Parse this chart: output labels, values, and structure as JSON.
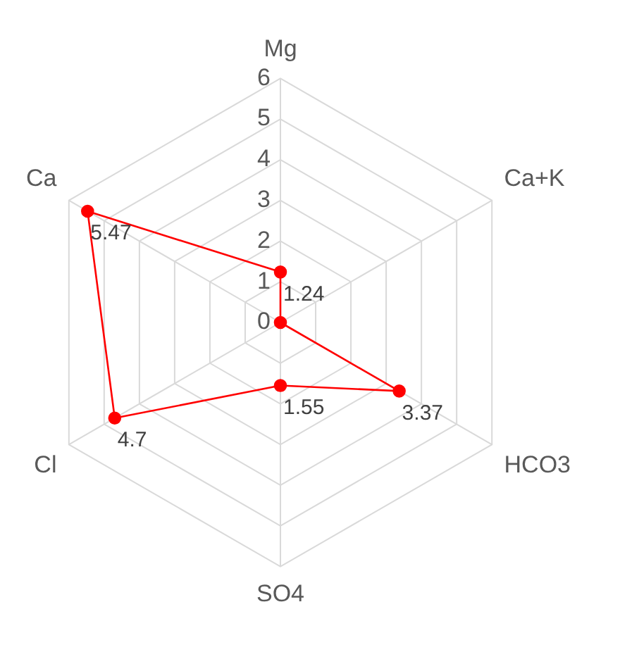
{
  "chart_data": {
    "type": "radar",
    "categories": [
      "Mg",
      "Ca+K",
      "HCO3",
      "SO4",
      "Cl",
      "Ca"
    ],
    "series": [
      {
        "color": "#ff0000",
        "values": [
          1.24,
          0,
          3.37,
          1.55,
          4.7,
          5.47
        ],
        "value_labels": [
          "1.24",
          null,
          "3.37",
          "1.55",
          "4.7",
          "5.47"
        ]
      }
    ],
    "ylim": [
      0,
      6
    ],
    "yticks": [
      0,
      1,
      2,
      3,
      4,
      5,
      6
    ],
    "grid": true,
    "legend": false,
    "marker": "circle",
    "line_style": "solid"
  }
}
